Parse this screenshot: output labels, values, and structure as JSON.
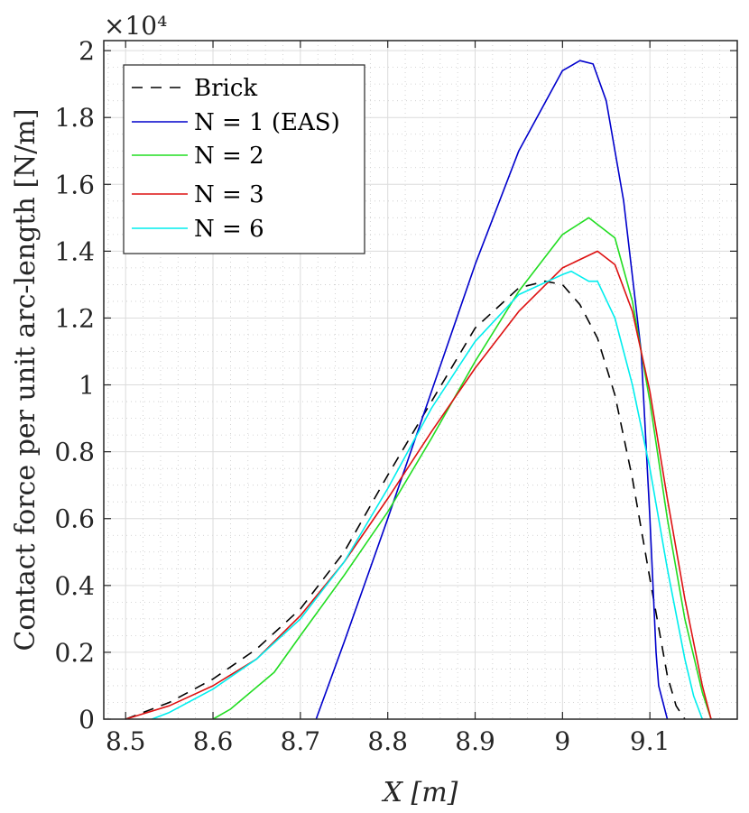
{
  "chart_data": {
    "type": "line",
    "title": "",
    "xlabel": "X [m]",
    "ylabel": "Contact force per unit arc-length [N/m]",
    "y_exponent_label": "×10⁴",
    "xlim": [
      8.475,
      9.2
    ],
    "ylim": [
      0,
      2.03
    ],
    "x_ticks": [
      8.5,
      8.6,
      8.7,
      8.8,
      8.9,
      9.0,
      9.1
    ],
    "x_tick_labels": [
      "8.5",
      "8.6",
      "8.7",
      "8.8",
      "8.9",
      "9",
      "9.1"
    ],
    "y_ticks": [
      0,
      0.2,
      0.4,
      0.6,
      0.8,
      1.0,
      1.2,
      1.4,
      1.6,
      1.8,
      2.0
    ],
    "y_tick_labels": [
      "0",
      "0.2",
      "0.4",
      "0.6",
      "0.8",
      "1",
      "1.2",
      "1.4",
      "1.6",
      "1.8",
      "2"
    ],
    "grid": true,
    "minor_grid": true,
    "legend_position": "top-left",
    "series": [
      {
        "name": "Brick",
        "color": "#000000",
        "dashed": true,
        "x": [
          8.5,
          8.55,
          8.6,
          8.65,
          8.7,
          8.75,
          8.8,
          8.85,
          8.9,
          8.95,
          8.98,
          9.0,
          9.02,
          9.04,
          9.06,
          9.08,
          9.1,
          9.12,
          9.13,
          9.14
        ],
        "y": [
          0.0,
          0.05,
          0.12,
          0.21,
          0.33,
          0.5,
          0.73,
          0.95,
          1.17,
          1.29,
          1.31,
          1.3,
          1.24,
          1.14,
          0.97,
          0.72,
          0.42,
          0.13,
          0.04,
          0.0
        ]
      },
      {
        "name": "N = 1 (EAS)",
        "color": "#0000cc",
        "dashed": false,
        "x": [
          8.718,
          8.75,
          8.8,
          8.85,
          8.9,
          8.95,
          9.0,
          9.02,
          9.035,
          9.05,
          9.07,
          9.09,
          9.1,
          9.107,
          9.11,
          9.12
        ],
        "y": [
          0.0,
          0.23,
          0.6,
          0.98,
          1.36,
          1.7,
          1.94,
          1.97,
          1.96,
          1.85,
          1.55,
          1.1,
          0.6,
          0.2,
          0.1,
          0.0
        ]
      },
      {
        "name": "N = 2",
        "color": "#22dd22",
        "dashed": false,
        "x": [
          8.6,
          8.62,
          8.67,
          8.7,
          8.75,
          8.8,
          8.85,
          8.9,
          8.95,
          9.0,
          9.03,
          9.06,
          9.08,
          9.1,
          9.12,
          9.14,
          9.16,
          9.17
        ],
        "y": [
          0.0,
          0.03,
          0.14,
          0.25,
          0.43,
          0.62,
          0.84,
          1.07,
          1.28,
          1.45,
          1.5,
          1.44,
          1.25,
          0.95,
          0.6,
          0.3,
          0.08,
          0.0
        ]
      },
      {
        "name": "N = 3",
        "color": "#dd1111",
        "dashed": false,
        "x": [
          8.5,
          8.55,
          8.6,
          8.65,
          8.7,
          8.75,
          8.8,
          8.85,
          8.9,
          8.95,
          9.0,
          9.04,
          9.06,
          9.08,
          9.1,
          9.12,
          9.14,
          9.16,
          9.17
        ],
        "y": [
          0.0,
          0.04,
          0.1,
          0.18,
          0.31,
          0.47,
          0.66,
          0.86,
          1.05,
          1.22,
          1.35,
          1.4,
          1.36,
          1.22,
          0.98,
          0.66,
          0.36,
          0.1,
          0.0
        ]
      },
      {
        "name": "N = 6",
        "color": "#00eeee",
        "dashed": false,
        "x": [
          8.53,
          8.55,
          8.6,
          8.65,
          8.7,
          8.75,
          8.8,
          8.85,
          8.9,
          8.95,
          9.0,
          9.01,
          9.03,
          9.04,
          9.06,
          9.08,
          9.1,
          9.12,
          9.14,
          9.15,
          9.16
        ],
        "y": [
          0.0,
          0.02,
          0.09,
          0.18,
          0.3,
          0.47,
          0.69,
          0.93,
          1.13,
          1.27,
          1.33,
          1.34,
          1.31,
          1.31,
          1.2,
          1.0,
          0.75,
          0.45,
          0.18,
          0.07,
          0.0
        ]
      }
    ]
  }
}
